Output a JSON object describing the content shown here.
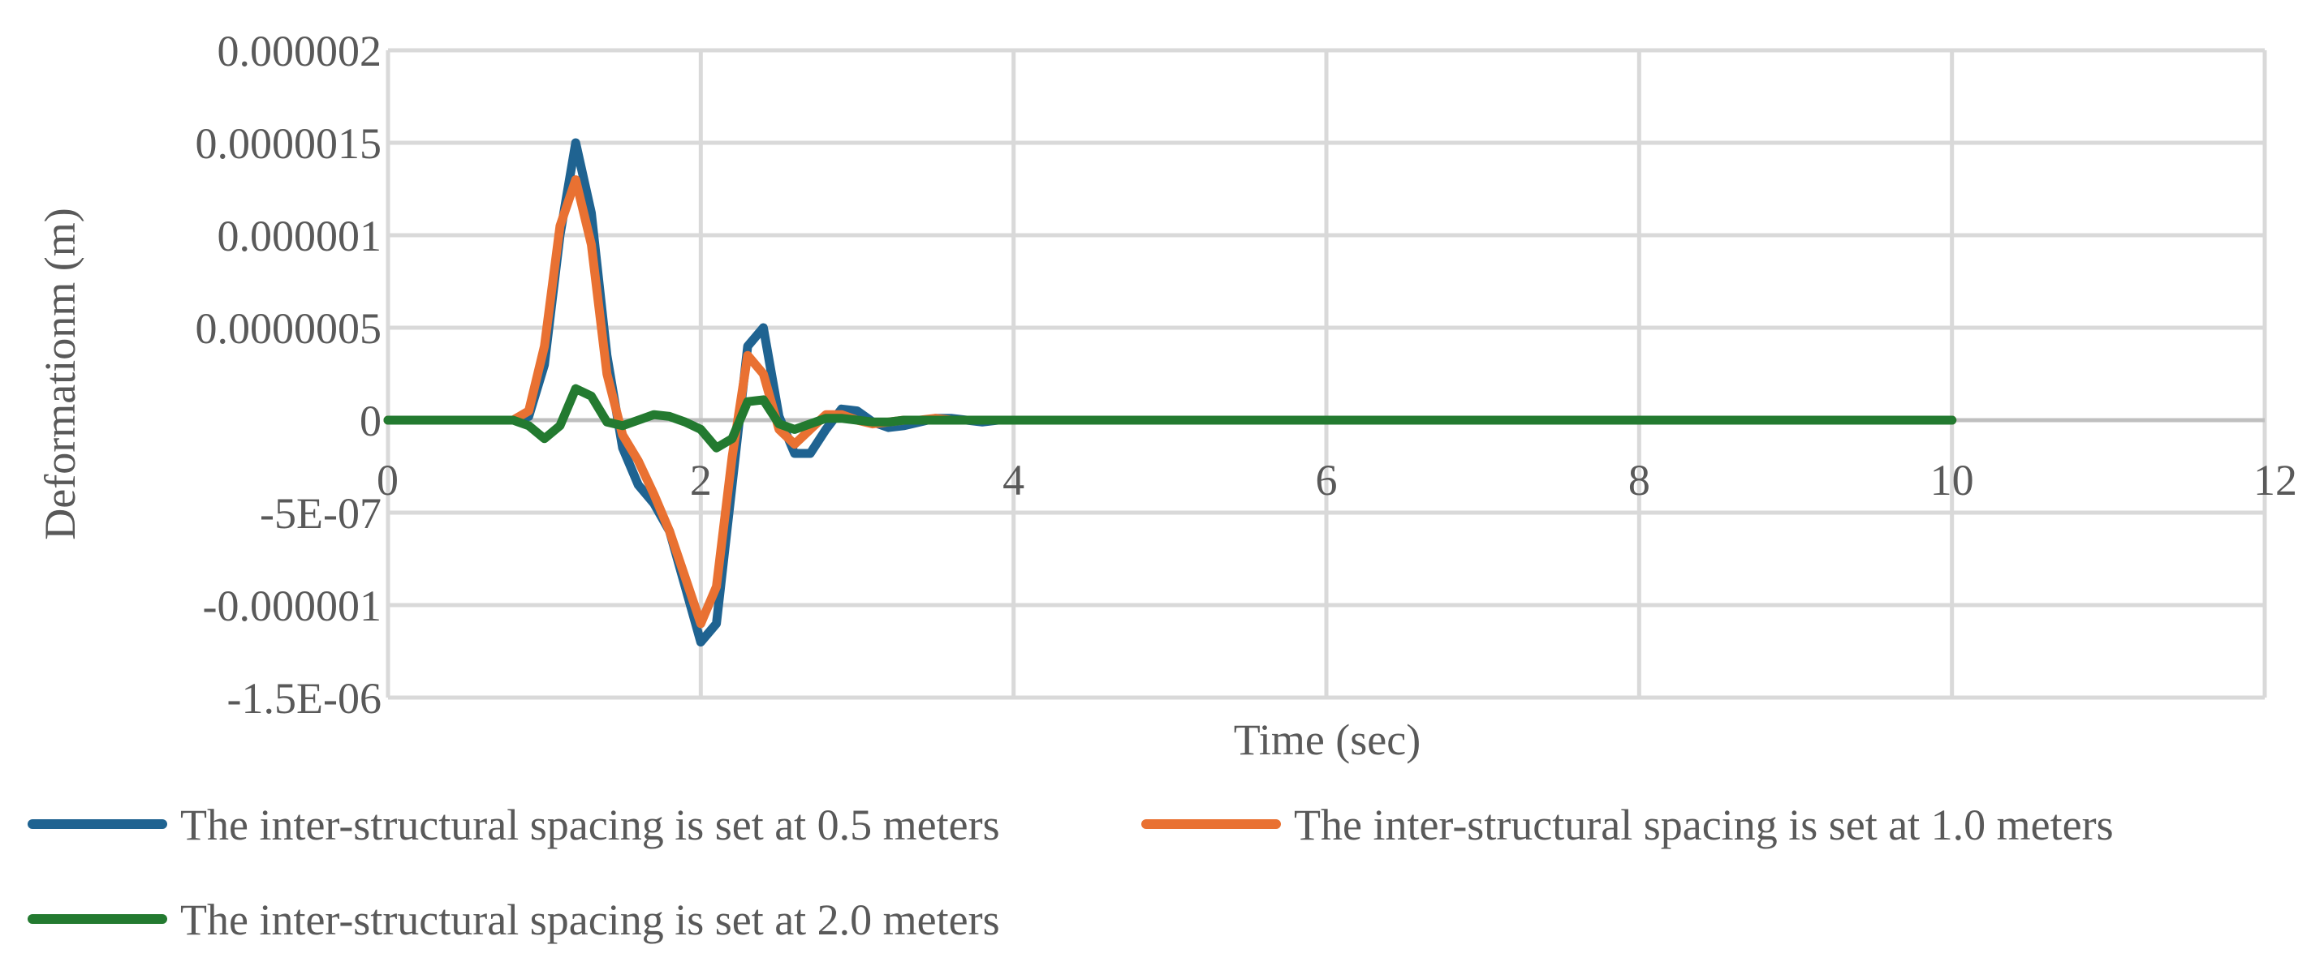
{
  "chart_data": {
    "type": "line",
    "title": "",
    "xlabel": "Time (sec)",
    "ylabel": "Deformationm (m)",
    "xlim": [
      0,
      12
    ],
    "ylim": [
      -1.5e-06,
      2e-06
    ],
    "x_ticks": [
      0,
      2,
      4,
      6,
      8,
      10,
      12
    ],
    "x_tick_labels": [
      "0",
      "2",
      "4",
      "6",
      "8",
      "10",
      "12"
    ],
    "y_ticks": [
      2e-06,
      1.5e-06,
      1e-06,
      5e-07,
      0,
      -5e-07,
      -1e-06,
      -1.5e-06
    ],
    "y_tick_labels": [
      "0.000002",
      "0.0000015",
      "0.000001",
      "0.0000005",
      "0",
      "-5E-07",
      "-0.000001",
      "-1.5E-06"
    ],
    "grid": true,
    "legend_position": "bottom",
    "series": [
      {
        "name": "The inter-structural spacing is set at 0.5 meters",
        "color": "#1F6391",
        "x": [
          0,
          0.5,
          0.8,
          0.9,
          1.0,
          1.1,
          1.2,
          1.3,
          1.4,
          1.5,
          1.6,
          1.7,
          1.8,
          1.9,
          2.0,
          2.1,
          2.2,
          2.3,
          2.4,
          2.5,
          2.6,
          2.7,
          2.8,
          2.9,
          3.0,
          3.1,
          3.2,
          3.3,
          3.4,
          3.5,
          3.6,
          3.7,
          3.8,
          3.9,
          4.0,
          5.0,
          6.0,
          7.0,
          8.0,
          9.0,
          10.0
        ],
        "y": [
          0,
          0,
          0,
          2e-08,
          3e-07,
          1e-06,
          1.5e-06,
          1.12e-06,
          3.5e-07,
          -1.5e-07,
          -3.5e-07,
          -4.5e-07,
          -6e-07,
          -9e-07,
          -1.2e-06,
          -1.1e-06,
          -3.5e-07,
          4e-07,
          5e-07,
          2e-08,
          -1.8e-07,
          -1.8e-07,
          -5e-08,
          6e-08,
          5e-08,
          -1e-08,
          -4e-08,
          -3e-08,
          -1e-08,
          1e-08,
          1e-08,
          0,
          -1e-08,
          0,
          0,
          0,
          0,
          0,
          0,
          0,
          0
        ]
      },
      {
        "name": "The inter-structural spacing is set at 1.0 meters",
        "color": "#E97132",
        "x": [
          0,
          0.5,
          0.8,
          0.9,
          1.0,
          1.1,
          1.2,
          1.3,
          1.4,
          1.5,
          1.6,
          1.7,
          1.8,
          1.9,
          2.0,
          2.1,
          2.2,
          2.3,
          2.4,
          2.5,
          2.6,
          2.7,
          2.8,
          2.9,
          3.0,
          3.1,
          3.2,
          3.3,
          3.4,
          3.5,
          3.6,
          3.7,
          3.8,
          3.9,
          4.0,
          5.0,
          6.0,
          7.0,
          8.0,
          9.0,
          10.0
        ],
        "y": [
          0,
          0,
          0,
          5e-08,
          4e-07,
          1.05e-06,
          1.3e-06,
          9.5e-07,
          2.5e-07,
          -8e-08,
          -2.2e-07,
          -4e-07,
          -6e-07,
          -8.5e-07,
          -1.1e-06,
          -9e-07,
          -2e-07,
          3.5e-07,
          2.5e-07,
          -5e-08,
          -1.3e-07,
          -5e-08,
          3e-08,
          3e-08,
          0,
          -2e-08,
          -1e-08,
          0,
          0,
          1e-08,
          0,
          0,
          0,
          0,
          0,
          0,
          0,
          0,
          0,
          0,
          0
        ]
      },
      {
        "name": "The inter-structural spacing is set at 2.0 meters",
        "color": "#237A30",
        "x": [
          0,
          0.5,
          0.8,
          0.9,
          1.0,
          1.1,
          1.2,
          1.3,
          1.4,
          1.5,
          1.6,
          1.7,
          1.8,
          1.9,
          2.0,
          2.1,
          2.2,
          2.3,
          2.4,
          2.5,
          2.6,
          2.7,
          2.8,
          2.9,
          3.0,
          3.1,
          3.2,
          3.3,
          3.4,
          3.5,
          3.6,
          3.7,
          3.8,
          3.9,
          4.0,
          5.0,
          6.0,
          7.0,
          8.0,
          9.0,
          10.0
        ],
        "y": [
          0,
          0,
          0,
          -3e-08,
          -1e-07,
          -3e-08,
          1.7e-07,
          1.3e-07,
          -1e-08,
          -3e-08,
          0,
          3e-08,
          2e-08,
          -1e-08,
          -5e-08,
          -1.5e-07,
          -1e-07,
          1e-07,
          1.1e-07,
          -2e-08,
          -5e-08,
          -2e-08,
          1e-08,
          1e-08,
          0,
          -1e-08,
          -1e-08,
          0,
          0,
          0,
          0,
          0,
          0,
          0,
          0,
          0,
          0,
          0,
          0,
          0,
          0
        ]
      }
    ]
  }
}
